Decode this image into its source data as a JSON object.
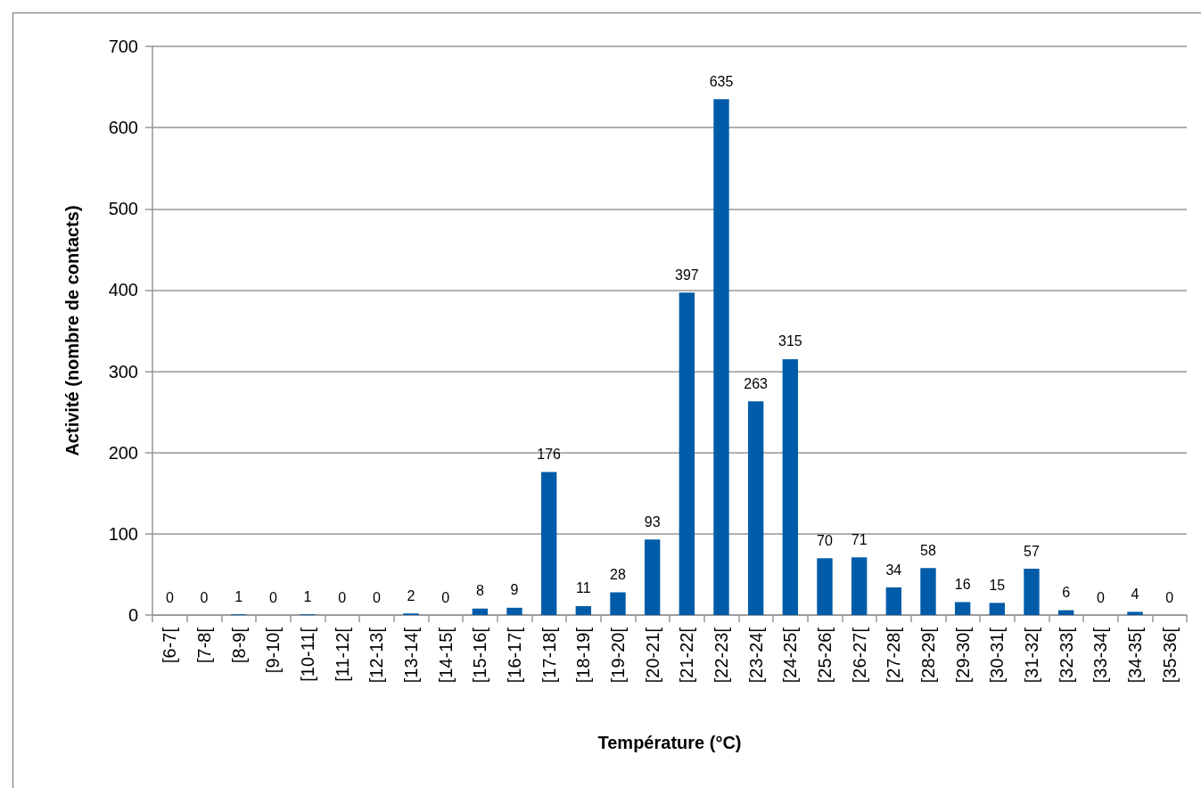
{
  "chart_data": {
    "type": "bar",
    "xlabel": "Température (°C)",
    "ylabel": "Activité (nombre de contacts)",
    "categories": [
      "[6-7[",
      "[7-8[",
      "[8-9[",
      "[9-10[",
      "[10-11[",
      "[11-12[",
      "[12-13[",
      "[13-14[",
      "[14-15[",
      "[15-16[",
      "[16-17[",
      "[17-18[",
      "[18-19[",
      "[19-20[",
      "[20-21[",
      "[21-22[",
      "[22-23[",
      "[23-24[",
      "[24-25[",
      "[25-26[",
      "[26-27[",
      "[27-28[",
      "[28-29[",
      "[29-30[",
      "[30-31[",
      "[31-32[",
      "[32-33[",
      "[33-34[",
      "[34-35[",
      "[35-36["
    ],
    "values": [
      0,
      0,
      1,
      0,
      1,
      0,
      0,
      2,
      0,
      8,
      9,
      176,
      11,
      28,
      93,
      397,
      635,
      263,
      315,
      70,
      71,
      34,
      58,
      16,
      15,
      57,
      6,
      0,
      4,
      0
    ],
    "color": "#005ca8",
    "ylim": [
      0,
      700
    ],
    "yticks": [
      0,
      100,
      200,
      300,
      400,
      500,
      600,
      700
    ],
    "grid": "y",
    "data_labels": true
  }
}
